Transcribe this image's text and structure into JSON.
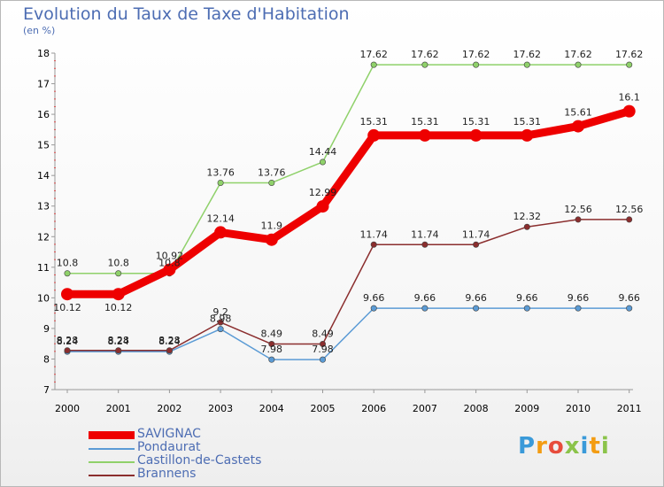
{
  "title": "Evolution du Taux de Taxe d'Habitation",
  "subtitle": "(en %)",
  "logo": {
    "letters": [
      "P",
      "r",
      "o",
      "x",
      "i",
      "t",
      "i"
    ],
    "colors": [
      "#3a9ad9",
      "#f39c12",
      "#e74c3c",
      "#8bc34a",
      "#3a9ad9",
      "#f39c12",
      "#8bc34a"
    ]
  },
  "chart_data": {
    "type": "line",
    "x": [
      "2000",
      "2001",
      "2002",
      "2003",
      "2004",
      "2005",
      "2006",
      "2007",
      "2008",
      "2009",
      "2010",
      "2011"
    ],
    "ylim": [
      7,
      18
    ],
    "yticks": [
      "7",
      "8",
      "9",
      "10",
      "11",
      "12",
      "13",
      "14",
      "15",
      "16",
      "17",
      "18"
    ],
    "grid": false,
    "legend_position": "bottom-left",
    "series": [
      {
        "name": "Pondaurat",
        "color": "#5b9bd5",
        "values": [
          8.24,
          8.24,
          8.24,
          8.98,
          7.98,
          7.98,
          9.66,
          9.66,
          9.66,
          9.66,
          9.66,
          9.66
        ],
        "labels": [
          "8.24",
          "8.24",
          "8.24",
          "8.98",
          "7.98",
          "7.98",
          "9.66",
          "9.66",
          "9.66",
          "9.66",
          "9.66",
          "9.66"
        ]
      },
      {
        "name": "Brannens",
        "color": "#8b2e2e",
        "values": [
          8.28,
          8.28,
          8.28,
          9.2,
          8.49,
          8.49,
          11.74,
          11.74,
          11.74,
          12.32,
          12.56,
          12.56
        ],
        "labels": [
          "8.28",
          "8.28",
          "8.28",
          "9.2",
          "8.49",
          "8.49",
          "11.74",
          "11.74",
          "11.74",
          "12.32",
          "12.56",
          "12.56"
        ]
      },
      {
        "name": "Castillon-de-Castets",
        "color": "#8fd16a",
        "values": [
          10.8,
          10.8,
          10.8,
          13.76,
          13.76,
          14.44,
          17.62,
          17.62,
          17.62,
          17.62,
          17.62,
          17.62
        ],
        "labels": [
          "10.8",
          "10.8",
          "10.8",
          "13.76",
          "13.76",
          "14.44",
          "17.62",
          "17.62",
          "17.62",
          "17.62",
          "17.62",
          "17.62"
        ]
      },
      {
        "name": "SAVIGNAC",
        "color": "#ee0000",
        "values": [
          10.12,
          10.12,
          10.92,
          12.14,
          11.9,
          12.99,
          15.31,
          15.31,
          15.31,
          15.31,
          15.61,
          16.1
        ],
        "labels": [
          "10.12",
          "10.12",
          "10.92",
          "12.14",
          "11.9",
          "12.99",
          "15.31",
          "15.31",
          "15.31",
          "15.31",
          "15.61",
          "16.1"
        ]
      }
    ],
    "legend": [
      "SAVIGNAC",
      "Pondaurat",
      "Castillon-de-Castets",
      "Brannens"
    ]
  }
}
